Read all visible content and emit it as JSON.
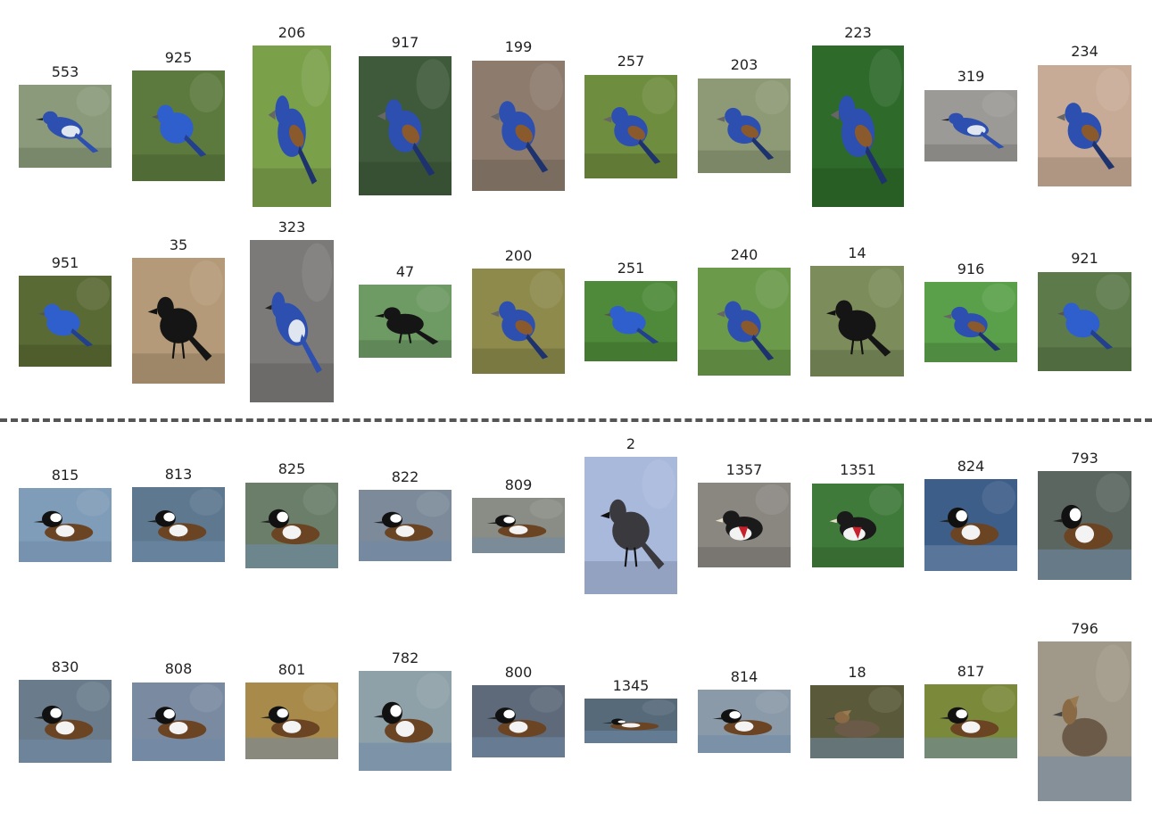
{
  "colors": {
    "blue_bird": "#2c4fb0",
    "black_bird": "#151515",
    "duck_body": "#6b4424",
    "duck_head": "#111111",
    "water": "#6f8aa8",
    "foliage": "#6f8d3f"
  },
  "groups": [
    {
      "rows": [
        {
          "items": [
            {
              "label": "553",
              "bird": "scrub-jay",
              "bg": "#8a9a7a"
            },
            {
              "label": "925",
              "bird": "indigo-bunting",
              "bg": "#5d7a3e"
            },
            {
              "label": "206",
              "bird": "blue-grosbeak",
              "bg": "#7aa04a"
            },
            {
              "label": "917",
              "bird": "blue-grosbeak",
              "bg": "#3f5a3a"
            },
            {
              "label": "199",
              "bird": "blue-grosbeak",
              "bg": "#8d7b6e"
            },
            {
              "label": "257",
              "bird": "blue-grosbeak",
              "bg": "#6f8d3f"
            },
            {
              "label": "203",
              "bird": "blue-grosbeak",
              "bg": "#8e9a76"
            },
            {
              "label": "223",
              "bird": "blue-grosbeak",
              "bg": "#2e6a2a"
            },
            {
              "label": "319",
              "bird": "blue-jay",
              "bg": "#9c9a96"
            },
            {
              "label": "234",
              "bird": "blue-grosbeak",
              "bg": "#c7ab96"
            }
          ]
        },
        {
          "items": [
            {
              "label": "951",
              "bird": "indigo-bunting",
              "bg": "#5a6a34"
            },
            {
              "label": "35",
              "bird": "crow",
              "bg": "#b49a78"
            },
            {
              "label": "323",
              "bird": "blue-jay",
              "bg": "#7c7a78"
            },
            {
              "label": "47",
              "bird": "crow",
              "bg": "#6e9a64"
            },
            {
              "label": "200",
              "bird": "blue-grosbeak",
              "bg": "#8d8a4c"
            },
            {
              "label": "251",
              "bird": "indigo-bunting",
              "bg": "#4e8a3a"
            },
            {
              "label": "240",
              "bird": "blue-grosbeak",
              "bg": "#6a9a4a"
            },
            {
              "label": "14",
              "bird": "crow",
              "bg": "#7c8c5a"
            },
            {
              "label": "916",
              "bird": "blue-grosbeak",
              "bg": "#5aa04a"
            },
            {
              "label": "921",
              "bird": "indigo-bunting",
              "bg": "#5d7a4a"
            }
          ]
        }
      ]
    },
    {
      "rows": [
        {
          "items": [
            {
              "label": "815",
              "bird": "hooded-merganser",
              "bg": "#7f9cb8"
            },
            {
              "label": "813",
              "bird": "hooded-merganser",
              "bg": "#5e7890"
            },
            {
              "label": "825",
              "bird": "hooded-merganser",
              "bg": "#6a7e6a"
            },
            {
              "label": "822",
              "bird": "hooded-merganser",
              "bg": "#7c8a9a"
            },
            {
              "label": "809",
              "bird": "hooded-merganser",
              "bg": "#8a8c86"
            },
            {
              "label": "2",
              "bird": "catbird",
              "bg": "#a9b9dc"
            },
            {
              "label": "1357",
              "bird": "grosbeak-rb",
              "bg": "#8a8680"
            },
            {
              "label": "1351",
              "bird": "grosbeak-rb",
              "bg": "#3f7a3a"
            },
            {
              "label": "824",
              "bird": "hooded-merganser",
              "bg": "#3e5e8a"
            },
            {
              "label": "793",
              "bird": "hooded-merganser",
              "bg": "#5c6660"
            }
          ]
        },
        {
          "items": [
            {
              "label": "830",
              "bird": "hooded-merganser",
              "bg": "#6a7c8c"
            },
            {
              "label": "808",
              "bird": "hooded-merganser",
              "bg": "#7a8aa0"
            },
            {
              "label": "801",
              "bird": "hooded-merganser",
              "bg": "#a88a4a"
            },
            {
              "label": "782",
              "bird": "hooded-merganser",
              "bg": "#8ea0a8"
            },
            {
              "label": "800",
              "bird": "hooded-merganser",
              "bg": "#5e6a7a"
            },
            {
              "label": "1345",
              "bird": "merganser-flat",
              "bg": "#566a7a"
            },
            {
              "label": "814",
              "bird": "hooded-merganser",
              "bg": "#8a9aa8"
            },
            {
              "label": "18",
              "bird": "female-merganser",
              "bg": "#5a5a3a"
            },
            {
              "label": "817",
              "bird": "hooded-merganser",
              "bg": "#7a8a3a"
            },
            {
              "label": "796",
              "bird": "female-merganser",
              "bg": "#a09888"
            }
          ]
        }
      ]
    }
  ]
}
